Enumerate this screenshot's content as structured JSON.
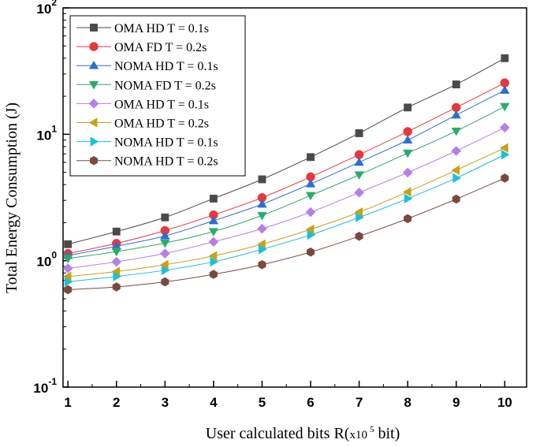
{
  "chart_data": {
    "type": "line",
    "title": "",
    "xlabel": "User calculated bits R(x10 5 bit)",
    "xlabel_parts": {
      "main": "User calculated bits R(",
      "small": "x10",
      "sup": "5",
      "tail": " bit)"
    },
    "ylabel": "Total Energy Consumption (J)",
    "x": [
      1,
      2,
      3,
      4,
      5,
      6,
      7,
      8,
      9,
      10
    ],
    "x_ticks": [
      "1",
      "2",
      "3",
      "4",
      "5",
      "6",
      "7",
      "8",
      "9",
      "10"
    ],
    "xlim": [
      0.9,
      10.45
    ],
    "yscale": "log",
    "ylim": [
      0.1,
      100
    ],
    "y_ticks": [
      {
        "base": "10",
        "exp": "-1",
        "value": 0.1
      },
      {
        "base": "10",
        "exp": "0",
        "value": 1
      },
      {
        "base": "10",
        "exp": "1",
        "value": 10
      },
      {
        "base": "10",
        "exp": "2",
        "value": 100
      }
    ],
    "grid": false,
    "legend_position": "top-left",
    "series": [
      {
        "name": "OMA HD T = 0.1s",
        "marker": "square",
        "color": "#4a4a4a",
        "values": [
          1.35,
          1.7,
          2.2,
          3.1,
          4.4,
          6.6,
          10.2,
          16.3,
          24.8,
          40
        ]
      },
      {
        "name": "OMA FD T = 0.2s",
        "marker": "circle",
        "color": "#e8383a",
        "values": [
          1.14,
          1.37,
          1.73,
          2.3,
          3.15,
          4.6,
          6.9,
          10.5,
          16.3,
          25.5
        ]
      },
      {
        "name": "NOMA HD T = 0.1s",
        "marker": "triangle-up",
        "color": "#2a6fd6",
        "values": [
          1.1,
          1.3,
          1.57,
          2.07,
          2.8,
          4.05,
          6.0,
          9.0,
          14.2,
          22.3
        ]
      },
      {
        "name": "NOMA FD T = 0.2s",
        "marker": "triangle-down",
        "color": "#2bab6a",
        "values": [
          1.04,
          1.18,
          1.38,
          1.7,
          2.28,
          3.28,
          4.78,
          7.1,
          10.6,
          16.6
        ]
      },
      {
        "name": "OMA HD T = 0.1s",
        "marker": "diamond",
        "color": "#b57fe8",
        "values": [
          0.87,
          0.98,
          1.14,
          1.41,
          1.79,
          2.42,
          3.46,
          4.98,
          7.38,
          11.3
        ]
      },
      {
        "name": "OMA HD T = 0.2s",
        "marker": "triangle-left",
        "color": "#c9a018",
        "values": [
          0.75,
          0.82,
          0.93,
          1.09,
          1.35,
          1.77,
          2.42,
          3.5,
          5.2,
          7.8
        ]
      },
      {
        "name": "NOMA HD T = 0.1s",
        "marker": "triangle-right",
        "color": "#18c1d8",
        "values": [
          0.68,
          0.75,
          0.84,
          0.98,
          1.23,
          1.6,
          2.2,
          3.1,
          4.5,
          6.9
        ]
      },
      {
        "name": "NOMA HD T = 0.2s",
        "marker": "hexagon",
        "color": "#7a4a3c",
        "values": [
          0.59,
          0.62,
          0.68,
          0.78,
          0.93,
          1.17,
          1.56,
          2.15,
          3.07,
          4.5
        ]
      }
    ]
  }
}
